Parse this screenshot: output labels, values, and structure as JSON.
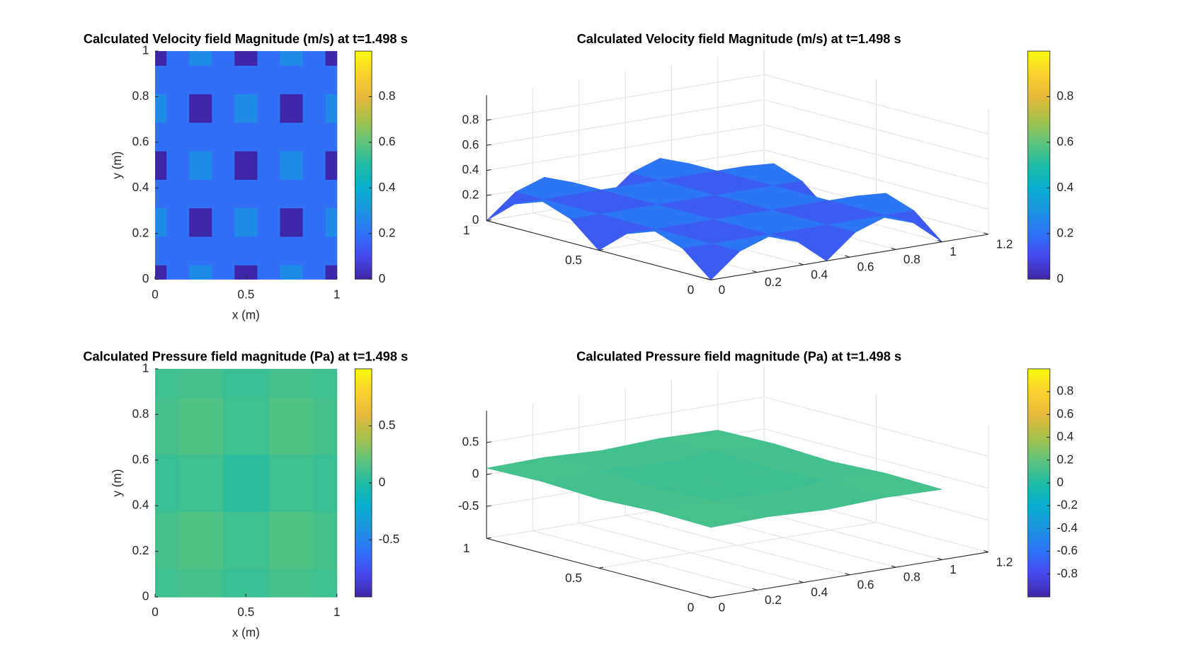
{
  "chart_data": [
    {
      "type": "heatmap",
      "title": "Calculated Velocity field Magnitude (m/s) at t=1.498 s",
      "xlabel": "x (m)",
      "ylabel": "y (m)",
      "x": [
        0,
        0.125,
        0.25,
        0.375,
        0.5,
        0.625,
        0.75,
        0.875,
        1
      ],
      "y": [
        0,
        0.125,
        0.25,
        0.375,
        0.5,
        0.625,
        0.75,
        0.875,
        1
      ],
      "z": [
        [
          0,
          0.19,
          0.27,
          0.19,
          0,
          0.19,
          0.27,
          0.19,
          0
        ],
        [
          0.19,
          0.19,
          0.19,
          0.19,
          0.19,
          0.19,
          0.19,
          0.19,
          0.19
        ],
        [
          0.27,
          0.19,
          0,
          0.19,
          0.27,
          0.19,
          0,
          0.19,
          0.27
        ],
        [
          0.19,
          0.19,
          0.19,
          0.19,
          0.19,
          0.19,
          0.19,
          0.19,
          0.19
        ],
        [
          0,
          0.19,
          0.27,
          0.19,
          0,
          0.19,
          0.27,
          0.19,
          0
        ],
        [
          0.19,
          0.19,
          0.19,
          0.19,
          0.19,
          0.19,
          0.19,
          0.19,
          0.19
        ],
        [
          0.27,
          0.19,
          0,
          0.19,
          0.27,
          0.19,
          0,
          0.19,
          0.27
        ],
        [
          0.19,
          0.19,
          0.19,
          0.19,
          0.19,
          0.19,
          0.19,
          0.19,
          0.19
        ],
        [
          0,
          0.19,
          0.27,
          0.19,
          0,
          0.19,
          0.27,
          0.19,
          0
        ]
      ],
      "xlim": [
        0,
        1
      ],
      "ylim": [
        0,
        1
      ],
      "xticks": [
        0,
        0.5,
        1
      ],
      "yticks": [
        0,
        0.2,
        0.4,
        0.6,
        0.8,
        1
      ],
      "colormap": "parula",
      "clim": [
        0,
        1
      ],
      "cticks": [
        0,
        0.2,
        0.4,
        0.6,
        0.8
      ]
    },
    {
      "type": "surface",
      "title": "Calculated Velocity field Magnitude (m/s) at t=1.498 s",
      "x": [
        0,
        0.125,
        0.25,
        0.375,
        0.5,
        0.625,
        0.75,
        0.875,
        1
      ],
      "y": [
        0,
        0.125,
        0.25,
        0.375,
        0.5,
        0.625,
        0.75,
        0.875,
        1
      ],
      "z": [
        [
          0,
          0.19,
          0.27,
          0.19,
          0,
          0.19,
          0.27,
          0.19,
          0
        ],
        [
          0.19,
          0.19,
          0.19,
          0.19,
          0.19,
          0.19,
          0.19,
          0.19,
          0.19
        ],
        [
          0.27,
          0.19,
          0,
          0.19,
          0.27,
          0.19,
          0,
          0.19,
          0.27
        ],
        [
          0.19,
          0.19,
          0.19,
          0.19,
          0.19,
          0.19,
          0.19,
          0.19,
          0.19
        ],
        [
          0,
          0.19,
          0.27,
          0.19,
          0,
          0.19,
          0.27,
          0.19,
          0
        ],
        [
          0.19,
          0.19,
          0.19,
          0.19,
          0.19,
          0.19,
          0.19,
          0.19,
          0.19
        ],
        [
          0.27,
          0.19,
          0,
          0.19,
          0.27,
          0.19,
          0,
          0.19,
          0.27
        ],
        [
          0.19,
          0.19,
          0.19,
          0.19,
          0.19,
          0.19,
          0.19,
          0.19,
          0.19
        ],
        [
          0,
          0.19,
          0.27,
          0.19,
          0,
          0.19,
          0.27,
          0.19,
          0
        ]
      ],
      "xlim": [
        0,
        1.2
      ],
      "ylim": [
        0,
        1
      ],
      "zlim": [
        0,
        1
      ],
      "xticks": [
        0,
        0.2,
        0.4,
        0.6,
        0.8,
        1,
        1.2
      ],
      "yticks": [
        0,
        0.5,
        1
      ],
      "zticks": [
        0,
        0.2,
        0.4,
        0.6,
        0.8
      ],
      "grid": true,
      "colormap": "parula",
      "clim": [
        0,
        1
      ],
      "cticks": [
        0,
        0.2,
        0.4,
        0.6,
        0.8
      ]
    },
    {
      "type": "heatmap",
      "title": "Calculated Pressure field magnitude (Pa) at t=1.498 s",
      "xlabel": "x (m)",
      "ylabel": "y (m)",
      "x": [
        0,
        0.25,
        0.5,
        0.75,
        1
      ],
      "y": [
        0,
        0.25,
        0.5,
        0.75,
        1
      ],
      "z": [
        [
          0.1,
          0.12,
          0.08,
          0.12,
          0.1
        ],
        [
          0.12,
          0.15,
          0.1,
          0.15,
          0.12
        ],
        [
          0.08,
          0.1,
          0.04,
          0.1,
          0.08
        ],
        [
          0.12,
          0.15,
          0.1,
          0.15,
          0.12
        ],
        [
          0.1,
          0.12,
          0.08,
          0.12,
          0.1
        ]
      ],
      "xlim": [
        0,
        1
      ],
      "ylim": [
        0,
        1
      ],
      "xticks": [
        0,
        0.5,
        1
      ],
      "yticks": [
        0,
        0.2,
        0.4,
        0.6,
        0.8,
        1
      ],
      "colormap": "parula",
      "clim": [
        -1,
        1
      ],
      "cticks": [
        -0.5,
        0,
        0.5
      ]
    },
    {
      "type": "surface",
      "title": "Calculated Pressure field magnitude (Pa) at t=1.498 s",
      "x": [
        0,
        0.25,
        0.5,
        0.75,
        1
      ],
      "y": [
        0,
        0.25,
        0.5,
        0.75,
        1
      ],
      "z": [
        [
          0.1,
          0.12,
          0.08,
          0.12,
          0.1
        ],
        [
          0.12,
          0.15,
          0.1,
          0.15,
          0.12
        ],
        [
          0.08,
          0.1,
          0.04,
          0.1,
          0.08
        ],
        [
          0.12,
          0.15,
          0.1,
          0.15,
          0.12
        ],
        [
          0.1,
          0.12,
          0.08,
          0.12,
          0.1
        ]
      ],
      "xlim": [
        0,
        1.2
      ],
      "ylim": [
        0,
        1
      ],
      "zlim": [
        -1,
        1
      ],
      "xticks": [
        0,
        0.2,
        0.4,
        0.6,
        0.8,
        1,
        1.2
      ],
      "yticks": [
        0,
        0.5,
        1
      ],
      "zticks": [
        -0.5,
        0,
        0.5
      ],
      "grid": true,
      "colormap": "parula",
      "clim": [
        -1,
        1
      ],
      "cticks": [
        -0.8,
        -0.6,
        -0.4,
        -0.2,
        0,
        0.2,
        0.4,
        0.6,
        0.8
      ]
    }
  ]
}
